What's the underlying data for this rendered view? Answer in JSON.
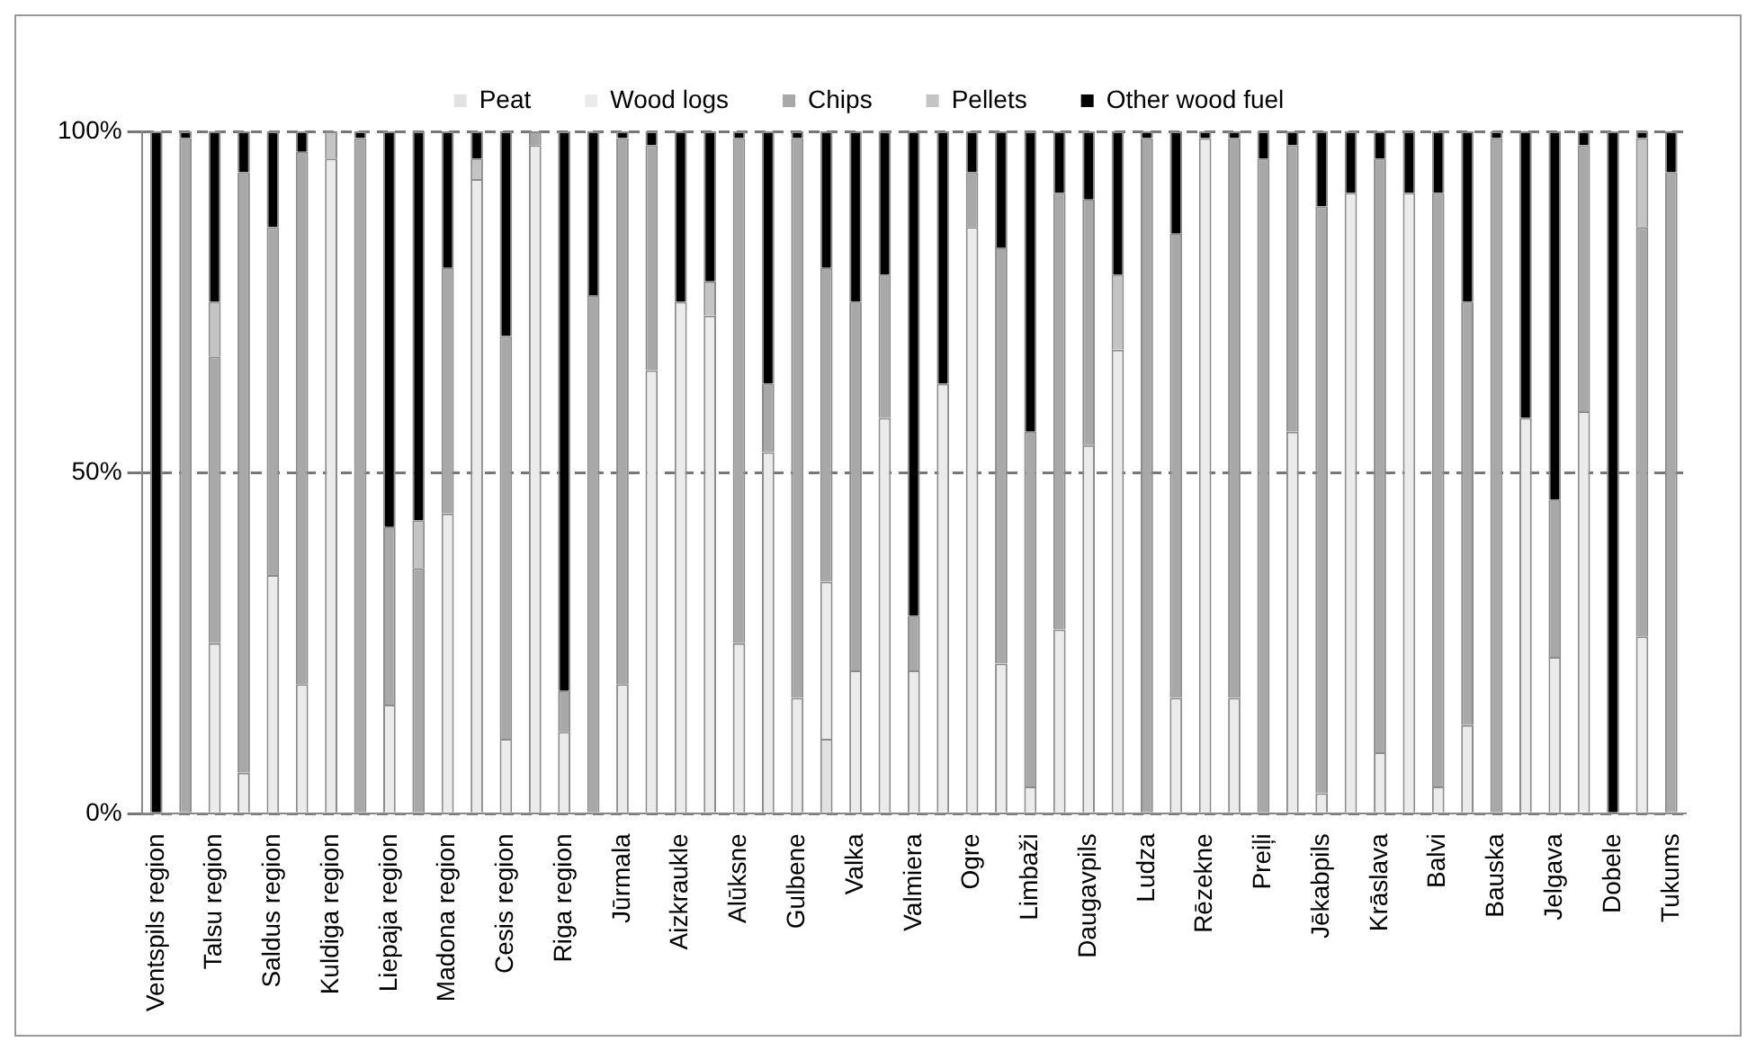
{
  "chart_data": {
    "type": "bar",
    "stacked": true,
    "legend": "top",
    "grid": "y",
    "line_style": "dashed",
    "categories": [
      "Ventspils region",
      null,
      "Talsu region",
      null,
      "Saldus region",
      null,
      "Kuldiga region",
      null,
      "Liepaja region",
      null,
      "Madona region",
      null,
      "Cesis region",
      null,
      "Riga region",
      null,
      "Jūrmala",
      null,
      "Aizkraukle",
      null,
      "Alūksne",
      null,
      "Gulbene",
      null,
      "Valka",
      null,
      "Valmiera",
      null,
      "Ogre",
      null,
      "Limbaži",
      null,
      "Daugavpils",
      null,
      "Ludza",
      null,
      "Rēzekne",
      null,
      "Preiļi",
      null,
      "Jēkabpils",
      null,
      "Krāslava",
      null,
      "Balvi",
      null,
      "Bauska",
      null,
      "Jelgava",
      null,
      "Dobele",
      null,
      "Tukums"
    ],
    "ylim": [
      0,
      100
    ],
    "yticks": [
      {
        "value": 0,
        "label": "0%"
      },
      {
        "value": 50,
        "label": "50%"
      },
      {
        "value": 100,
        "label": "100%"
      }
    ],
    "series": [
      {
        "name": "Peat",
        "color": "#e2e2e2",
        "values": [
          0,
          0,
          0,
          0,
          0,
          0,
          0,
          0,
          0,
          0,
          0,
          0,
          0,
          0,
          0,
          0,
          0,
          0,
          0,
          0,
          0,
          0,
          0,
          11,
          0,
          0,
          0,
          0,
          0,
          0,
          0,
          0,
          0,
          0,
          0,
          0,
          0,
          0,
          0,
          0,
          0,
          0,
          0,
          0,
          0,
          0,
          0,
          0,
          0,
          0,
          0,
          0,
          0
        ]
      },
      {
        "name": "Wood logs",
        "color": "#ebebeb",
        "values": [
          0,
          0,
          25,
          6,
          35,
          19,
          96,
          0,
          16,
          0,
          44,
          93,
          11,
          98,
          12,
          0,
          19,
          65,
          75,
          73,
          25,
          53,
          17,
          23,
          21,
          58,
          21,
          63,
          86,
          22,
          4,
          27,
          54,
          68,
          0,
          17,
          99,
          17,
          0,
          56,
          3,
          91,
          9,
          91,
          4,
          13,
          0,
          58,
          23,
          59,
          0,
          26,
          0
        ]
      },
      {
        "name": "Chips",
        "color": "#a8a8a8",
        "values": [
          0,
          99,
          42,
          88,
          51,
          78,
          0,
          99,
          26,
          36,
          36,
          0,
          59,
          2,
          6,
          76,
          80,
          33,
          0,
          0,
          74,
          10,
          82,
          46,
          54,
          21,
          8,
          0,
          8,
          61,
          52,
          64,
          36,
          0,
          99,
          68,
          0,
          82,
          96,
          42,
          86,
          0,
          87,
          0,
          87,
          62,
          99,
          0,
          23,
          39,
          0,
          60,
          94
        ]
      },
      {
        "name": "Pellets",
        "color": "#c4c4c4",
        "values": [
          0,
          0,
          8,
          0,
          0,
          0,
          4,
          0,
          0,
          7,
          0,
          3,
          0,
          0,
          0,
          0,
          0,
          0,
          0,
          5,
          0,
          0,
          0,
          0,
          0,
          0,
          0,
          0,
          0,
          0,
          0,
          0,
          0,
          11,
          0,
          0,
          0,
          0,
          0,
          0,
          0,
          0,
          0,
          0,
          0,
          0,
          0,
          0,
          0,
          0,
          0,
          13,
          0
        ]
      },
      {
        "name": "Other wood fuel",
        "color": "#000000",
        "values": [
          100,
          1,
          25,
          6,
          14,
          3,
          0,
          1,
          58,
          57,
          20,
          4,
          30,
          0,
          82,
          24,
          1,
          2,
          25,
          22,
          1,
          37,
          1,
          20,
          25,
          21,
          71,
          37,
          6,
          17,
          44,
          9,
          10,
          21,
          1,
          15,
          1,
          1,
          4,
          2,
          11,
          9,
          4,
          9,
          9,
          25,
          1,
          42,
          54,
          2,
          100,
          1,
          6
        ]
      }
    ]
  }
}
